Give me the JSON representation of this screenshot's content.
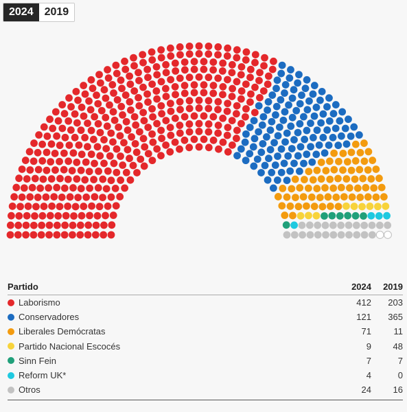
{
  "year_toggle": {
    "active": "2024",
    "inactive": "2019"
  },
  "colors": {
    "Laborismo": "#e4282b",
    "Conservadores": "#1c6cc1",
    "Liberales Demócratas": "#f39b0f",
    "Partido Nacional Escocés": "#f7d33b",
    "Sinn Fein": "#20a07a",
    "Reform UK*": "#1ec9e0",
    "Otros": "#c2c2c2"
  },
  "table": {
    "header": {
      "party": "Partido",
      "col_a": "2024",
      "col_b": "2019"
    },
    "rows": [
      {
        "party": "Laborismo",
        "v2024": "412",
        "v2019": "203"
      },
      {
        "party": "Conservadores",
        "v2024": "121",
        "v2019": "365"
      },
      {
        "party": "Liberales Demócratas",
        "v2024": "71",
        "v2019": "11"
      },
      {
        "party": "Partido Nacional Escocés",
        "v2024": "9",
        "v2019": "48"
      },
      {
        "party": "Sinn Fein",
        "v2024": "7",
        "v2019": "7"
      },
      {
        "party": "Reform UK*",
        "v2024": "4",
        "v2019": "0"
      },
      {
        "party": "Otros",
        "v2024": "24",
        "v2019": "16"
      }
    ]
  },
  "chart_data": {
    "type": "parliament",
    "year": "2024",
    "total_seats": 650,
    "series": [
      {
        "name": "Laborismo",
        "values": [
          412
        ]
      },
      {
        "name": "Conservadores",
        "values": [
          121
        ]
      },
      {
        "name": "Liberales Demócratas",
        "values": [
          71
        ]
      },
      {
        "name": "Partido Nacional Escocés",
        "values": [
          9
        ]
      },
      {
        "name": "Sinn Fein",
        "values": [
          7
        ]
      },
      {
        "name": "Reform UK*",
        "values": [
          4
        ]
      },
      {
        "name": "Otros",
        "values": [
          24
        ]
      }
    ],
    "undeclared": 2
  }
}
